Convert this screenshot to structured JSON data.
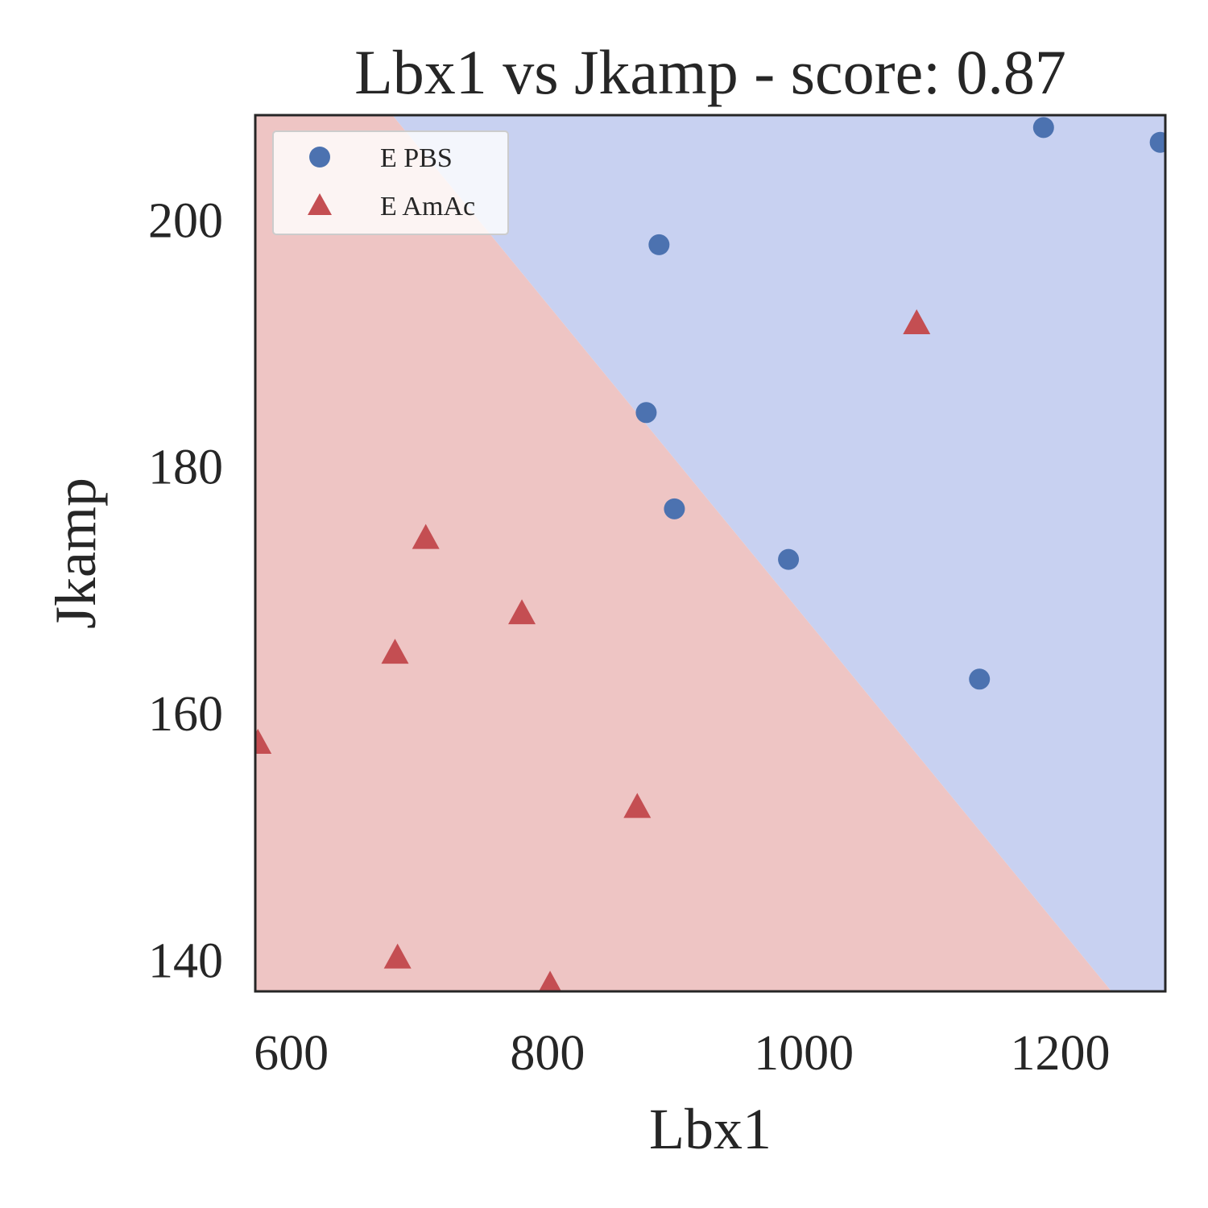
{
  "chart_data": {
    "type": "scatter",
    "title": "Lbx1 vs Jkamp - score: 0.87",
    "xlabel": "Lbx1",
    "ylabel": "Jkamp",
    "xlim": [
      572,
      1282
    ],
    "ylim": [
      137.5,
      208.5
    ],
    "x_ticks": [
      600,
      800,
      1000,
      1200
    ],
    "y_ticks": [
      140,
      160,
      180,
      200
    ],
    "x_tick_labels": [
      "600",
      "800",
      "1000",
      "1200"
    ],
    "y_tick_labels": [
      "140",
      "160",
      "180",
      "200"
    ],
    "grid": false,
    "legend_position": "top-left",
    "decision_boundary": {
      "points": [
        [
          679,
          208.5
        ],
        [
          1240,
          137.5
        ]
      ],
      "region_above_class": "E PBS",
      "region_below_class": "E AmAc",
      "colors": {
        "E PBS": "#c8d1f1",
        "E AmAc": "#eec5c4"
      }
    },
    "series": [
      {
        "name": "E PBS",
        "marker": "circle",
        "color": "#4c72b0",
        "points": [
          {
            "x": 1187,
            "y": 207.5
          },
          {
            "x": 1278,
            "y": 206.3
          },
          {
            "x": 887,
            "y": 198.0
          },
          {
            "x": 877,
            "y": 184.4
          },
          {
            "x": 899,
            "y": 176.6
          },
          {
            "x": 988,
            "y": 172.5
          },
          {
            "x": 1137,
            "y": 162.8
          }
        ]
      },
      {
        "name": "E AmAc",
        "marker": "triangle",
        "color": "#c44e52",
        "points": [
          {
            "x": 1088,
            "y": 191.6
          },
          {
            "x": 705,
            "y": 174.2
          },
          {
            "x": 780,
            "y": 168.1
          },
          {
            "x": 681,
            "y": 164.9
          },
          {
            "x": 574,
            "y": 157.6
          },
          {
            "x": 870,
            "y": 152.4
          },
          {
            "x": 683,
            "y": 140.2
          },
          {
            "x": 802,
            "y": 138.0
          }
        ]
      }
    ]
  }
}
